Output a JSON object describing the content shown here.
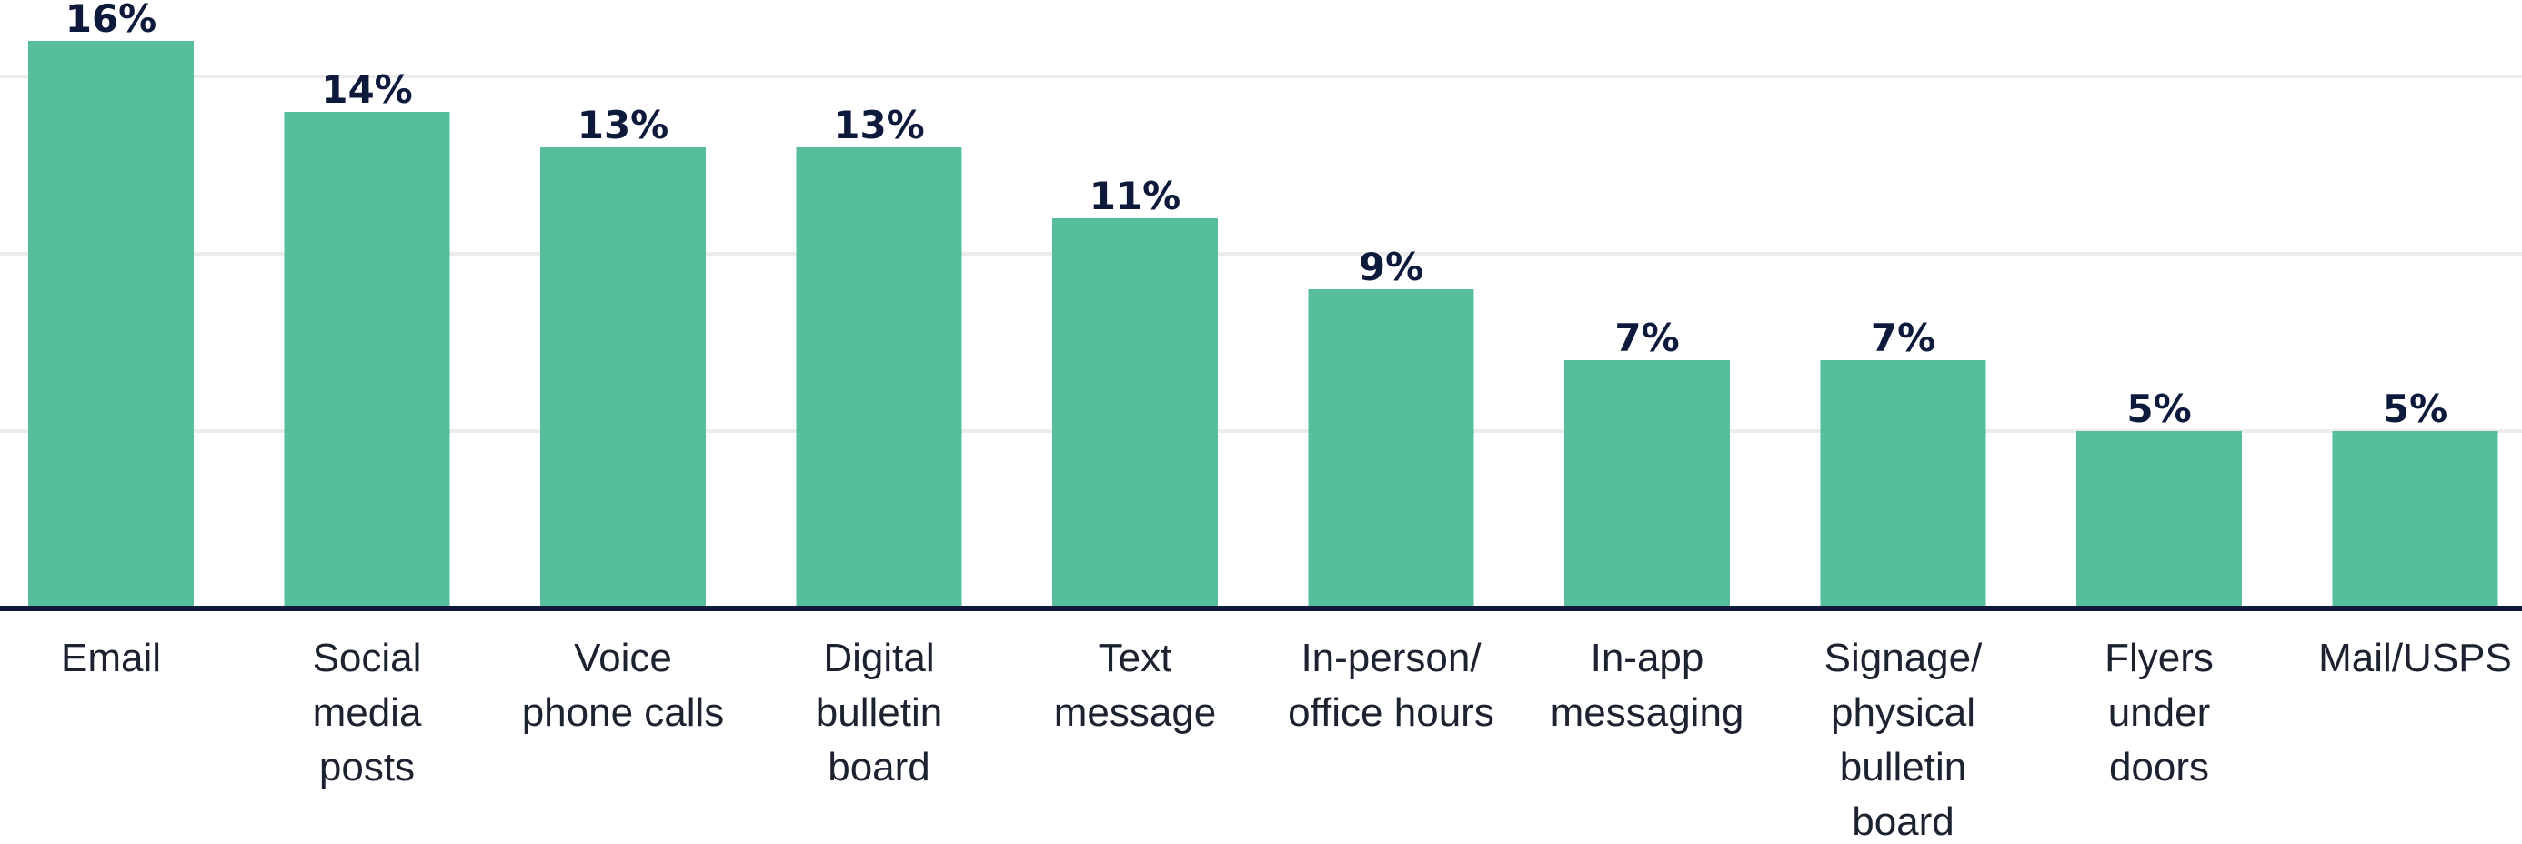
{
  "chart_data": {
    "type": "bar",
    "categories": [
      [
        "Email"
      ],
      [
        "Social",
        "media",
        "posts"
      ],
      [
        "Voice",
        "phone calls"
      ],
      [
        "Digital",
        "bulletin",
        "board"
      ],
      [
        "Text",
        "message"
      ],
      [
        "In-person/",
        "office hours"
      ],
      [
        "In-app",
        "messaging"
      ],
      [
        "Signage/",
        "physical",
        "bulletin",
        "board"
      ],
      [
        "Flyers",
        "under",
        "doors"
      ],
      [
        "Mail/USPS"
      ]
    ],
    "values": [
      16,
      14,
      13,
      13,
      11,
      9,
      7,
      7,
      5,
      5
    ],
    "value_labels": [
      "16%",
      "14%",
      "13%",
      "13%",
      "11%",
      "9%",
      "7%",
      "7%",
      "5%",
      "5%"
    ],
    "title": "",
    "xlabel": "",
    "ylabel": "",
    "ylim": [
      0,
      17
    ],
    "grid": true,
    "colors": {
      "bar": "#57be9a",
      "axis": "#0e1a3c",
      "label": "#0e1a3c",
      "grid": "#ececec"
    }
  }
}
